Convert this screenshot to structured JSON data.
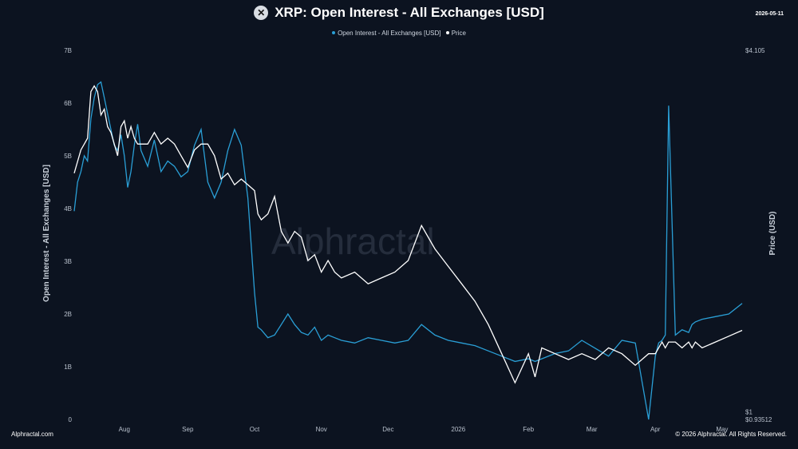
{
  "header": {
    "title": "XRP: Open Interest - All Exchanges [USD]",
    "date": "2026-05-11"
  },
  "footer": {
    "brand": "Alphractal.com",
    "copyright": "© 2026 Alphractal. All Rights Reserved."
  },
  "watermark": "Alphractal",
  "colors": {
    "open_interest": "#2a9fd6",
    "price": "#ffffff",
    "background": "#0c1320"
  },
  "chart_data": {
    "type": "line",
    "title": "XRP: Open Interest - All Exchanges [USD]",
    "ylabel_left": "Open Interest - All Exchanges [USD]",
    "ylabel_right": "Price (USD)",
    "left_ticks": [
      "0",
      "1B",
      "2B",
      "3B",
      "4B",
      "5B",
      "6B",
      "7B"
    ],
    "left_ylim": [
      0,
      7000000000
    ],
    "right_ticks": [
      "$0.93512",
      "$1",
      "$4.105"
    ],
    "right_ylim": [
      0.93512,
      4.105
    ],
    "x_ticks": [
      "Aug",
      "Sep",
      "Oct",
      "Nov",
      "Dec",
      "2026",
      "Feb",
      "Mar",
      "Apr",
      "May"
    ],
    "x_tick_fracs": [
      0.075,
      0.17,
      0.27,
      0.37,
      0.47,
      0.575,
      0.68,
      0.775,
      0.87,
      0.97
    ],
    "legend": [
      "Open Interest - All Exchanges [USD]",
      "Price"
    ],
    "grid": false,
    "series": [
      {
        "name": "Open Interest - All Exchanges [USD]",
        "x": [
          0,
          0.005,
          0.01,
          0.015,
          0.02,
          0.025,
          0.03,
          0.035,
          0.04,
          0.045,
          0.05,
          0.055,
          0.06,
          0.065,
          0.07,
          0.075,
          0.08,
          0.085,
          0.09,
          0.095,
          0.1,
          0.11,
          0.12,
          0.13,
          0.14,
          0.15,
          0.16,
          0.17,
          0.18,
          0.19,
          0.2,
          0.21,
          0.22,
          0.23,
          0.24,
          0.25,
          0.26,
          0.27,
          0.275,
          0.28,
          0.29,
          0.3,
          0.31,
          0.32,
          0.33,
          0.34,
          0.35,
          0.36,
          0.37,
          0.38,
          0.39,
          0.4,
          0.42,
          0.44,
          0.46,
          0.48,
          0.5,
          0.52,
          0.54,
          0.56,
          0.58,
          0.6,
          0.62,
          0.64,
          0.66,
          0.68,
          0.69,
          0.7,
          0.72,
          0.74,
          0.76,
          0.78,
          0.8,
          0.82,
          0.84,
          0.86,
          0.87,
          0.875,
          0.88,
          0.885,
          0.89,
          0.9,
          0.91,
          0.92,
          0.925,
          0.93,
          0.94,
          0.96,
          0.98,
          1.0
        ],
        "values": [
          3.95,
          4.5,
          4.7,
          5.0,
          4.9,
          5.7,
          6.1,
          6.35,
          6.4,
          6.1,
          5.8,
          5.5,
          5.2,
          5.1,
          5.4,
          5.0,
          4.4,
          4.7,
          5.2,
          5.6,
          5.1,
          4.8,
          5.3,
          4.7,
          4.9,
          4.8,
          4.6,
          4.7,
          5.2,
          5.5,
          4.5,
          4.2,
          4.5,
          5.1,
          5.5,
          5.2,
          4.2,
          2.4,
          1.75,
          1.7,
          1.55,
          1.6,
          1.8,
          2.0,
          1.8,
          1.65,
          1.6,
          1.75,
          1.5,
          1.6,
          1.55,
          1.5,
          1.45,
          1.55,
          1.5,
          1.45,
          1.5,
          1.8,
          1.6,
          1.5,
          1.45,
          1.4,
          1.3,
          1.2,
          1.1,
          1.15,
          1.1,
          1.15,
          1.25,
          1.3,
          1.5,
          1.35,
          1.2,
          1.5,
          1.45,
          0.0,
          1.2,
          1.45,
          1.5,
          1.6,
          5.95,
          1.6,
          1.7,
          1.65,
          1.8,
          1.85,
          1.9,
          1.95,
          2.0,
          2.2
        ]
      },
      {
        "name": "Price",
        "x": [
          0,
          0.005,
          0.01,
          0.015,
          0.02,
          0.025,
          0.03,
          0.035,
          0.04,
          0.045,
          0.05,
          0.055,
          0.06,
          0.065,
          0.07,
          0.075,
          0.08,
          0.085,
          0.09,
          0.095,
          0.1,
          0.11,
          0.12,
          0.13,
          0.14,
          0.15,
          0.16,
          0.17,
          0.18,
          0.19,
          0.2,
          0.21,
          0.22,
          0.23,
          0.24,
          0.25,
          0.26,
          0.27,
          0.275,
          0.28,
          0.29,
          0.3,
          0.31,
          0.32,
          0.33,
          0.34,
          0.35,
          0.36,
          0.37,
          0.38,
          0.39,
          0.4,
          0.42,
          0.44,
          0.46,
          0.48,
          0.5,
          0.52,
          0.54,
          0.56,
          0.58,
          0.6,
          0.62,
          0.64,
          0.66,
          0.68,
          0.69,
          0.7,
          0.72,
          0.74,
          0.76,
          0.78,
          0.8,
          0.82,
          0.84,
          0.86,
          0.87,
          0.875,
          0.88,
          0.885,
          0.89,
          0.9,
          0.91,
          0.92,
          0.925,
          0.93,
          0.94,
          0.96,
          0.98,
          1.0
        ],
        "values": [
          3.05,
          3.15,
          3.25,
          3.3,
          3.35,
          3.75,
          3.8,
          3.75,
          3.55,
          3.6,
          3.45,
          3.4,
          3.3,
          3.2,
          3.45,
          3.5,
          3.35,
          3.45,
          3.35,
          3.3,
          3.3,
          3.3,
          3.4,
          3.3,
          3.35,
          3.3,
          3.2,
          3.1,
          3.25,
          3.3,
          3.3,
          3.2,
          3.0,
          3.05,
          2.95,
          3.0,
          2.95,
          2.9,
          2.7,
          2.65,
          2.7,
          2.85,
          2.55,
          2.45,
          2.55,
          2.5,
          2.3,
          2.35,
          2.2,
          2.3,
          2.2,
          2.15,
          2.2,
          2.1,
          2.15,
          2.2,
          2.3,
          2.6,
          2.4,
          2.25,
          2.1,
          1.95,
          1.75,
          1.5,
          1.25,
          1.5,
          1.3,
          1.55,
          1.5,
          1.45,
          1.5,
          1.45,
          1.55,
          1.5,
          1.4,
          1.5,
          1.5,
          1.55,
          1.6,
          1.55,
          1.6,
          1.6,
          1.55,
          1.6,
          1.55,
          1.6,
          1.55,
          1.6,
          1.65,
          1.7
        ]
      }
    ]
  }
}
